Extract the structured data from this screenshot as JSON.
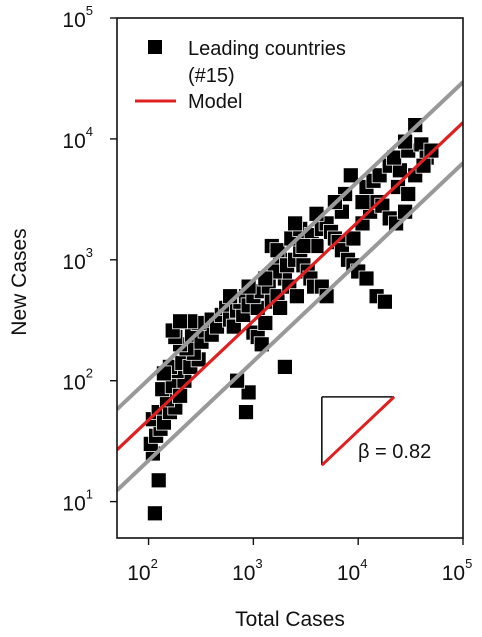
{
  "chart_data": {
    "type": "scatter",
    "xscale": "log",
    "yscale": "log",
    "xlim": [
      50,
      100000
    ],
    "ylim": [
      5,
      100000
    ],
    "xlabel": "Total Cases",
    "ylabel": "New Cases",
    "x_ticks": [
      {
        "value": 100,
        "base": "10",
        "exp": "2"
      },
      {
        "value": 1000,
        "base": "10",
        "exp": "3"
      },
      {
        "value": 10000,
        "base": "10",
        "exp": "4"
      },
      {
        "value": 100000,
        "base": "10",
        "exp": "5"
      }
    ],
    "y_ticks": [
      {
        "value": 10,
        "base": "10",
        "exp": "1"
      },
      {
        "value": 100,
        "base": "10",
        "exp": "2"
      },
      {
        "value": 1000,
        "base": "10",
        "exp": "3"
      },
      {
        "value": 10000,
        "base": "10",
        "exp": "4"
      },
      {
        "value": 100000,
        "base": "10",
        "exp": "5"
      }
    ],
    "legend": {
      "position": "top-left",
      "entries": [
        {
          "label": "Leading countries",
          "label2": "(#15)",
          "marker": "square",
          "color": "#000000"
        },
        {
          "label": "Model",
          "marker": "line",
          "color": "#e02020"
        }
      ]
    },
    "colors": {
      "points": "#000000",
      "model": "#e02020",
      "bands": "#999999"
    },
    "model_line": {
      "slope": 0.82,
      "intercept_log10": 0.035
    },
    "band_lines": [
      {
        "slope": 0.82,
        "intercept_log10": 0.37
      },
      {
        "slope": 0.82,
        "intercept_log10": -0.3
      }
    ],
    "slope_annotation": {
      "text": "β = 0.82",
      "slope": 0.82,
      "x_start": 4500,
      "x_end": 22000,
      "y_start": 20
    },
    "series": [
      {
        "points": [
          [
            115,
            8
          ],
          [
            125,
            15
          ],
          [
            110,
            25
          ],
          [
            105,
            30
          ],
          [
            118,
            35
          ],
          [
            130,
            40
          ],
          [
            110,
            48
          ],
          [
            125,
            55
          ],
          [
            140,
            45
          ],
          [
            160,
            55
          ],
          [
            180,
            60
          ],
          [
            150,
            70
          ],
          [
            135,
            85
          ],
          [
            170,
            90
          ],
          [
            200,
            75
          ],
          [
            220,
            100
          ],
          [
            185,
            120
          ],
          [
            160,
            130
          ],
          [
            140,
            115
          ],
          [
            210,
            140
          ],
          [
            250,
            130
          ],
          [
            300,
            150
          ],
          [
            270,
            170
          ],
          [
            230,
            185
          ],
          [
            200,
            200
          ],
          [
            180,
            230
          ],
          [
            170,
            260
          ],
          [
            260,
            240
          ],
          [
            320,
            210
          ],
          [
            350,
            260
          ],
          [
            400,
            240
          ],
          [
            300,
            300
          ],
          [
            250,
            310
          ],
          [
            200,
            310
          ],
          [
            400,
            320
          ],
          [
            450,
            280
          ],
          [
            500,
            350
          ],
          [
            550,
            400
          ],
          [
            600,
            320
          ],
          [
            650,
            280
          ],
          [
            700,
            380
          ],
          [
            800,
            350
          ],
          [
            750,
            450
          ],
          [
            850,
            500
          ],
          [
            900,
            420
          ],
          [
            1000,
            250
          ],
          [
            1100,
            230
          ],
          [
            1200,
            200
          ],
          [
            1300,
            300
          ],
          [
            1100,
            400
          ],
          [
            1000,
            500
          ],
          [
            1200,
            550
          ],
          [
            1400,
            600
          ],
          [
            1500,
            450
          ],
          [
            1700,
            500
          ],
          [
            1800,
            400
          ],
          [
            2000,
            700
          ],
          [
            1800,
            1000
          ],
          [
            1600,
            800
          ],
          [
            1500,
            1300
          ],
          [
            1700,
            1200
          ],
          [
            2100,
            900
          ],
          [
            2500,
            1000
          ],
          [
            2800,
            1200
          ],
          [
            3000,
            900
          ],
          [
            3300,
            800
          ],
          [
            3500,
            700
          ],
          [
            3800,
            600
          ],
          [
            4500,
            600
          ],
          [
            5000,
            500
          ],
          [
            2200,
            600
          ],
          [
            2600,
            500
          ],
          [
            2300,
            1500
          ],
          [
            2800,
            1800
          ],
          [
            3200,
            1400
          ],
          [
            3600,
            1600
          ],
          [
            4000,
            1300
          ],
          [
            4500,
            1800
          ],
          [
            5000,
            2000
          ],
          [
            5500,
            1700
          ],
          [
            6000,
            1500
          ],
          [
            6500,
            1400
          ],
          [
            7000,
            1200
          ],
          [
            8000,
            1000
          ],
          [
            9000,
            900
          ],
          [
            10000,
            800
          ],
          [
            12000,
            700
          ],
          [
            15000,
            500
          ],
          [
            18000,
            450
          ],
          [
            9000,
            1500
          ],
          [
            11000,
            2000
          ],
          [
            13000,
            2500
          ],
          [
            15000,
            3000
          ],
          [
            17000,
            2800
          ],
          [
            20000,
            2200
          ],
          [
            23000,
            2000
          ],
          [
            11000,
            3000
          ],
          [
            12000,
            4000
          ],
          [
            14000,
            4500
          ],
          [
            16000,
            5000
          ],
          [
            20000,
            6000
          ],
          [
            25000,
            5500
          ],
          [
            22000,
            7000
          ],
          [
            30000,
            8000
          ],
          [
            40000,
            9000
          ],
          [
            45000,
            7000
          ],
          [
            50000,
            8000
          ],
          [
            35000,
            13000
          ],
          [
            28000,
            9500
          ],
          [
            24000,
            4000
          ],
          [
            30000,
            3500
          ],
          [
            28000,
            2500
          ],
          [
            35000,
            5000
          ],
          [
            42000,
            6000
          ],
          [
            7500,
            3500
          ],
          [
            8500,
            5000
          ],
          [
            7000,
            2500
          ],
          [
            6000,
            3000
          ],
          [
            3000,
            1300
          ],
          [
            2500,
            2000
          ],
          [
            4000,
            2400
          ],
          [
            1300,
            700
          ],
          [
            900,
            600
          ],
          [
            600,
            500
          ],
          [
            2000,
            130
          ],
          [
            900,
            80
          ],
          [
            850,
            55
          ],
          [
            700,
            100
          ]
        ]
      }
    ]
  }
}
